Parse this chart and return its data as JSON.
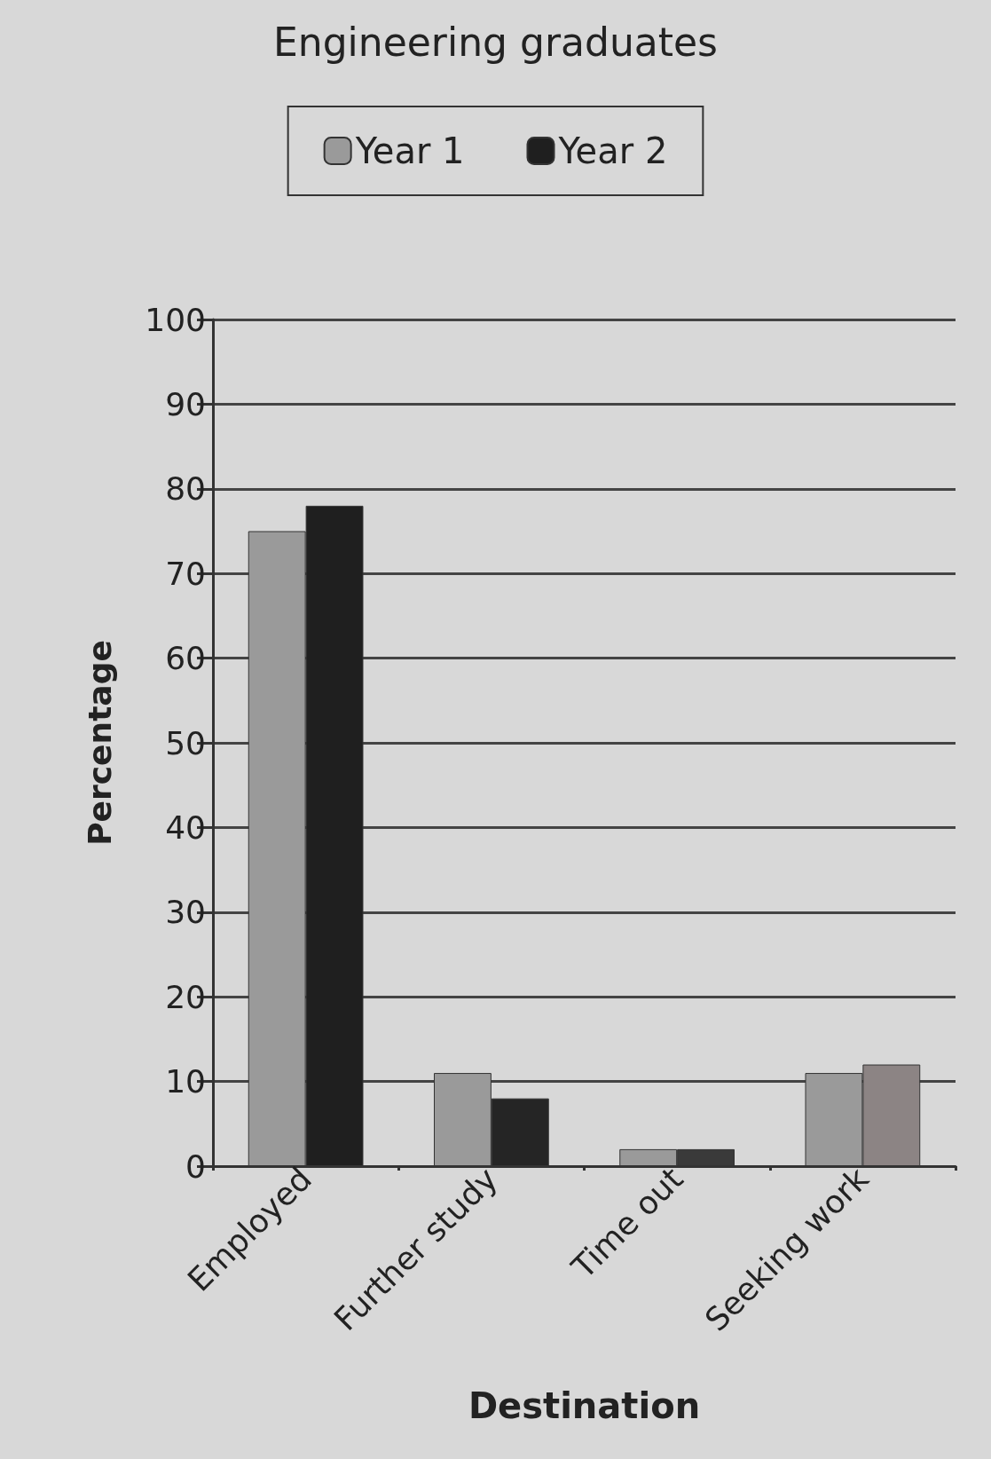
{
  "chart_data": {
    "type": "bar",
    "title": "Engineering graduates",
    "xlabel": "Destination",
    "ylabel": "Percentage",
    "categories": [
      "Employed",
      "Further study",
      "Time out",
      "Seeking work"
    ],
    "series": [
      {
        "name": "Year 1",
        "color": "#9a9a9a",
        "values": [
          75,
          11,
          2,
          11
        ]
      },
      {
        "name": "Year 2",
        "color": "#1f1f1f",
        "colors": [
          "#1f1f1f",
          "#252525",
          "#3a3a3a",
          "#8c8484"
        ],
        "values": [
          78,
          8,
          2,
          12
        ]
      }
    ],
    "ylim": [
      0,
      100
    ],
    "yticks": [
      0,
      10,
      20,
      30,
      40,
      50,
      60,
      70,
      80,
      90,
      100
    ],
    "grid": "y",
    "legend": "top"
  }
}
